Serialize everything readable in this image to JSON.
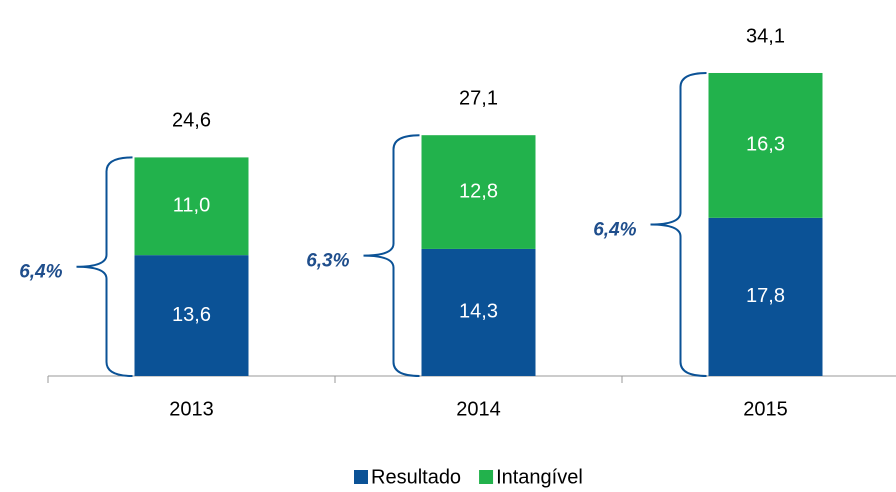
{
  "chart_data": {
    "type": "stacked_bar",
    "categories": [
      "2013",
      "2014",
      "2015"
    ],
    "series": [
      {
        "name": "Resultado",
        "color": "#0b5296",
        "values": [
          13.6,
          14.3,
          17.8
        ],
        "value_labels": [
          "13,6",
          "14,3",
          "17,8"
        ]
      },
      {
        "name": "Intangível",
        "color": "#22b24c",
        "values": [
          11.0,
          12.8,
          16.3
        ],
        "value_labels": [
          "11,0",
          "12,8",
          "16,3"
        ]
      }
    ],
    "total_labels": [
      "24,6",
      "27,1",
      "34,1"
    ],
    "annotations": [
      "6,4%",
      "6,3%",
      "6,4%"
    ],
    "annotation_color": "#1f4e8c"
  }
}
